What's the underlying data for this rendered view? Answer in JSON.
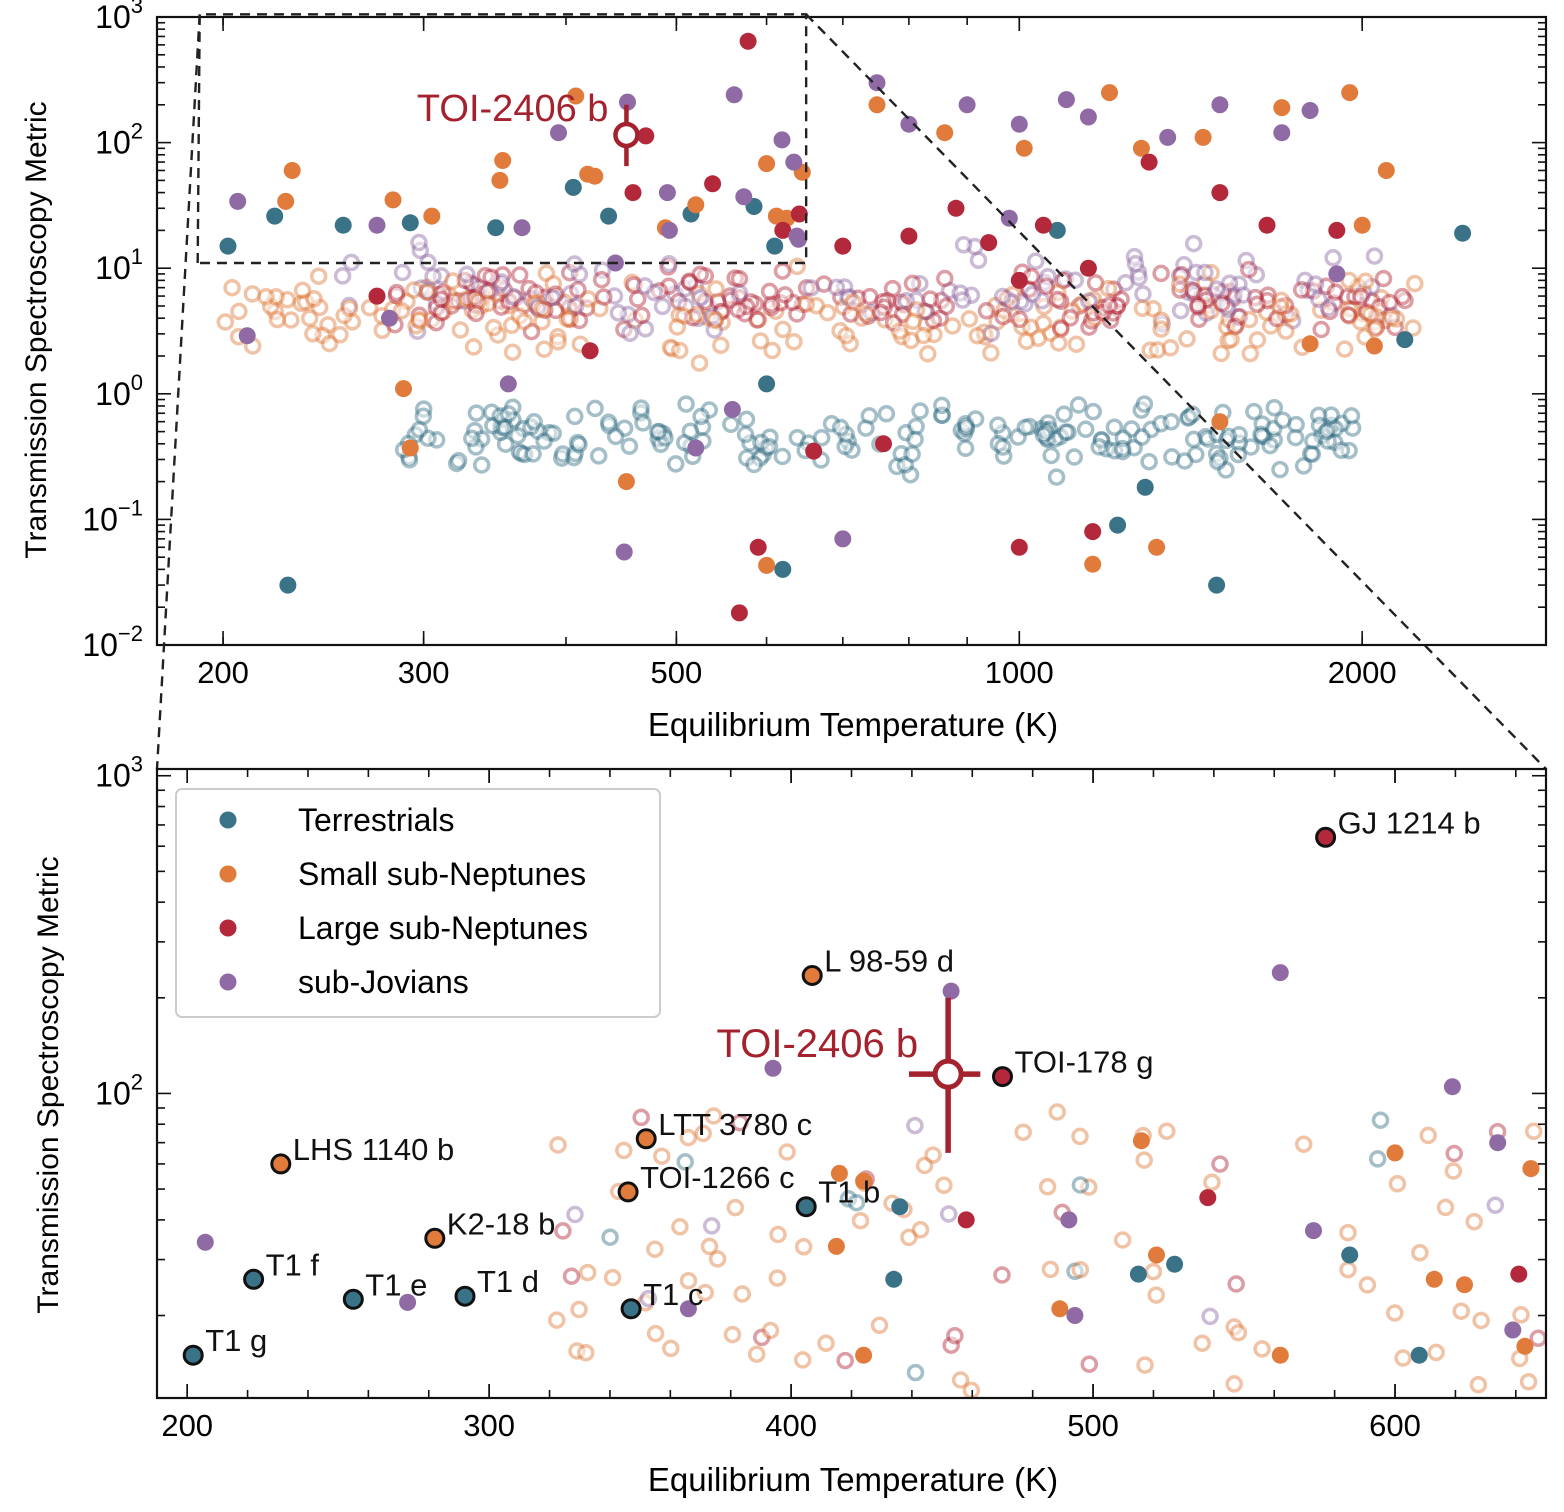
{
  "colors": {
    "terrestrial": "#3a7287",
    "small": "#e07b3c",
    "large": "#b3283a",
    "subjovian": "#8f6aa4",
    "highlight": "#a3222e"
  },
  "highlight_label": "TOI-2406 b",
  "chart_data": [
    {
      "type": "scatter",
      "name": "overview",
      "xlabel": "Equilibrium Temperature (K)",
      "ylabel": "Transmission Spectroscopy Metric",
      "xscale": "log",
      "yscale": "log",
      "xlim": [
        175,
        2900
      ],
      "ylim": [
        0.01,
        1000
      ],
      "xticks": [
        200,
        300,
        500,
        1000,
        2000
      ],
      "xtick_labels": [
        "200",
        "300",
        "500",
        "1000",
        "2000"
      ],
      "yticks": [
        0.01,
        0.1,
        1,
        10,
        100,
        1000
      ],
      "ytick_labels": [
        [
          "10",
          "−2"
        ],
        [
          "10",
          "−1"
        ],
        [
          "10",
          "0"
        ],
        [
          "10",
          "1"
        ],
        [
          "10",
          "2"
        ],
        [
          "10",
          "3"
        ]
      ],
      "zoom_box": {
        "x": [
          190,
          650
        ],
        "y": [
          11,
          1050
        ]
      },
      "highlight": {
        "label": "TOI-2406 b",
        "x": 452,
        "y": 115,
        "xerr": [
          445,
          462
        ],
        "yerr": [
          65,
          200
        ]
      },
      "series": [
        {
          "key": "terrestrial",
          "points": [
            [
              202,
              15
            ],
            [
              222,
              26
            ],
            [
              255,
              22
            ],
            [
              292,
              23
            ],
            [
              347,
              21
            ],
            [
              406,
              44
            ],
            [
              436,
              26
            ],
            [
              515,
              27
            ],
            [
              585,
              31
            ],
            [
              610,
              15
            ],
            [
              1080,
              20
            ],
            [
              2450,
              19
            ],
            [
              2180,
              2.7
            ],
            [
              1490,
              0.03
            ],
            [
              1290,
              0.18
            ],
            [
              1220,
              0.09
            ],
            [
              620,
              0.04
            ],
            [
              228,
              0.03
            ],
            [
              600,
              1.2
            ]
          ]
        },
        {
          "key": "small",
          "points": [
            [
              230,
              60
            ],
            [
              227,
              34
            ],
            [
              282,
              35
            ],
            [
              305,
              26
            ],
            [
              352,
              72
            ],
            [
              408,
              235
            ],
            [
              350,
              50
            ],
            [
              418,
              56
            ],
            [
              424,
              54
            ],
            [
              600,
              68
            ],
            [
              520,
              32
            ],
            [
              489,
              21
            ],
            [
              612,
              26
            ],
            [
              625,
              25
            ],
            [
              645,
              58
            ],
            [
              750,
              200
            ],
            [
              860,
              120
            ],
            [
              1010,
              90
            ],
            [
              1200,
              250
            ],
            [
              1450,
              110
            ],
            [
              1700,
              190
            ],
            [
              1950,
              250
            ],
            [
              2100,
              60
            ],
            [
              2000,
              22
            ],
            [
              1280,
              90
            ],
            [
              600,
              0.043
            ],
            [
              1320,
              0.06
            ],
            [
              1160,
              0.044
            ],
            [
              292,
              0.37
            ],
            [
              452,
              0.2
            ],
            [
              1500,
              0.6
            ],
            [
              2050,
              2.4
            ],
            [
              1800,
              2.5
            ],
            [
              288,
              1.1
            ]
          ]
        },
        {
          "key": "large",
          "points": [
            [
              578,
              640
            ],
            [
              470,
              113
            ],
            [
              458,
              40
            ],
            [
              538,
              47
            ],
            [
              641,
              27
            ],
            [
              568,
              0.018
            ],
            [
              590,
              0.06
            ],
            [
              1000,
              0.06
            ],
            [
              1160,
              0.08
            ],
            [
              660,
              0.35
            ],
            [
              760,
              0.4
            ],
            [
              1500,
              40
            ],
            [
              1650,
              22
            ],
            [
              1900,
              20
            ],
            [
              1000,
              8
            ],
            [
              1150,
              10
            ],
            [
              800,
              18
            ],
            [
              620,
              20
            ],
            [
              880,
              30
            ],
            [
              940,
              16
            ],
            [
              273,
              6
            ],
            [
              420,
              2.2
            ],
            [
              1050,
              22
            ],
            [
              1300,
              70
            ],
            [
              700,
              15
            ]
          ]
        },
        {
          "key": "subjovian",
          "points": [
            [
              206,
              34
            ],
            [
              273,
              22
            ],
            [
              366,
              21
            ],
            [
              394,
              120
            ],
            [
              453,
              210
            ],
            [
              562,
              240
            ],
            [
              573,
              37
            ],
            [
              619,
              105
            ],
            [
              634,
              70
            ],
            [
              638,
              18
            ],
            [
              640,
              17
            ],
            [
              491,
              40
            ],
            [
              493,
              20
            ],
            [
              442,
              11
            ],
            [
              450,
              0.055
            ],
            [
              700,
              0.07
            ],
            [
              560,
              0.75
            ],
            [
              520,
              0.37
            ],
            [
              356,
              1.2
            ],
            [
              280,
              4
            ],
            [
              750,
              300
            ],
            [
              900,
              200
            ],
            [
              1100,
              220
            ],
            [
              1500,
              200
            ],
            [
              1800,
              180
            ],
            [
              1000,
              140
            ],
            [
              1350,
              110
            ],
            [
              1700,
              120
            ],
            [
              800,
              140
            ],
            [
              1150,
              160
            ],
            [
              1900,
              9
            ],
            [
              210,
              2.9
            ],
            [
              980,
              25
            ]
          ]
        }
      ]
    },
    {
      "type": "scatter",
      "name": "zoom",
      "xlabel": "Equilibrium Temperature (K)",
      "ylabel": "Transmission Spectroscopy Metric",
      "xscale": "linear",
      "yscale": "log",
      "xlim": [
        190,
        650
      ],
      "ylim": [
        11,
        1050
      ],
      "xticks": [
        200,
        300,
        400,
        500,
        600
      ],
      "xtick_labels": [
        "200",
        "300",
        "400",
        "500",
        "600"
      ],
      "yticks": [
        100,
        1000
      ],
      "ytick_labels": [
        [
          "10",
          "2"
        ],
        [
          "10",
          "3"
        ]
      ],
      "legend": {
        "location": "top-left",
        "entries": [
          {
            "key": "terrestrial",
            "label": "Terrestrials"
          },
          {
            "key": "small",
            "label": "Small sub-Neptunes"
          },
          {
            "key": "large",
            "label": "Large sub-Neptunes"
          },
          {
            "key": "subjovian",
            "label": "sub-Jovians"
          }
        ]
      },
      "highlight": {
        "label": "TOI-2406 b",
        "x": 452,
        "y": 115,
        "xerr": [
          445,
          462
        ],
        "yerr": [
          65,
          200
        ]
      },
      "labeled_points": [
        {
          "name": "GJ 1214 b",
          "x": 577,
          "y": 640,
          "key": "large"
        },
        {
          "name": "L 98-59 d",
          "x": 407,
          "y": 235,
          "key": "small"
        },
        {
          "name": "TOI-178 g",
          "x": 470,
          "y": 113,
          "key": "large"
        },
        {
          "name": "LTT 3780 c",
          "x": 352,
          "y": 72,
          "key": "small"
        },
        {
          "name": "LHS 1140 b",
          "x": 231,
          "y": 60,
          "key": "small"
        },
        {
          "name": "TOI-1266 c",
          "x": 346,
          "y": 49,
          "key": "small"
        },
        {
          "name": "T1 b",
          "x": 405,
          "y": 44,
          "key": "terrestrial"
        },
        {
          "name": "K2-18 b",
          "x": 282,
          "y": 35,
          "key": "small"
        },
        {
          "name": "T1 f",
          "x": 222,
          "y": 26,
          "key": "terrestrial"
        },
        {
          "name": "T1 e",
          "x": 255,
          "y": 22.5,
          "key": "terrestrial"
        },
        {
          "name": "T1 d",
          "x": 292,
          "y": 23,
          "key": "terrestrial"
        },
        {
          "name": "T1 c",
          "x": 347,
          "y": 21,
          "key": "terrestrial"
        },
        {
          "name": "T1 g",
          "x": 202,
          "y": 15,
          "key": "terrestrial"
        }
      ],
      "series": [
        {
          "key": "terrestrial",
          "points": [
            [
              436,
              44
            ],
            [
              434,
              26
            ],
            [
              515,
              27
            ],
            [
              527,
              29
            ],
            [
              585,
              31
            ],
            [
              608,
              15
            ]
          ]
        },
        {
          "key": "small",
          "points": [
            [
              416,
              56
            ],
            [
              424,
              53
            ],
            [
              415,
              33
            ],
            [
              424,
              15
            ],
            [
              489,
              21
            ],
            [
              516,
              71
            ],
            [
              521,
              31
            ],
            [
              562,
              15
            ],
            [
              600,
              65
            ],
            [
              613,
              26
            ],
            [
              623,
              25
            ],
            [
              645,
              58
            ],
            [
              643,
              16
            ]
          ]
        },
        {
          "key": "large",
          "points": [
            [
              458,
              40
            ],
            [
              538,
              47
            ],
            [
              547,
              11
            ],
            [
              641,
              27
            ]
          ]
        },
        {
          "key": "subjovian",
          "points": [
            [
              206,
              34
            ],
            [
              273,
              22
            ],
            [
              366,
              21
            ],
            [
              394,
              120
            ],
            [
              453,
              210
            ],
            [
              492,
              40
            ],
            [
              494,
              20
            ],
            [
              562,
              240
            ],
            [
              573,
              37
            ],
            [
              619,
              105
            ],
            [
              634,
              70
            ],
            [
              639,
              18
            ],
            [
              443,
              11
            ]
          ]
        }
      ]
    }
  ]
}
